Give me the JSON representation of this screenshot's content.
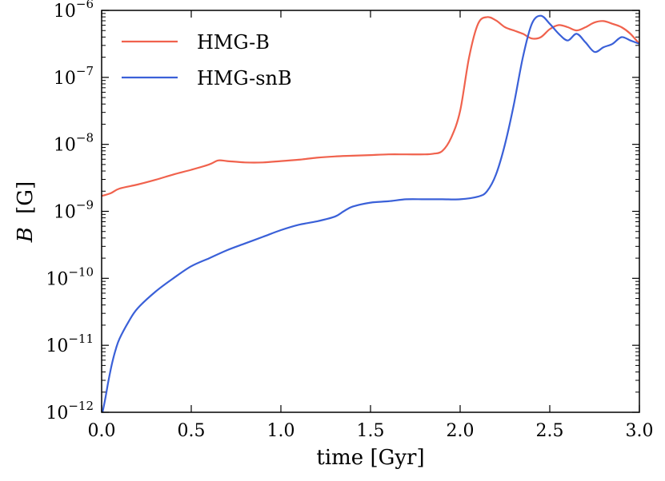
{
  "chart_data": {
    "type": "line",
    "title": "",
    "xlabel": "time [Gyr]",
    "ylabel_symbol": "B",
    "ylabel_unit": "[G]",
    "xlim": [
      0.0,
      3.0
    ],
    "ylim_log10": [
      -12,
      -6
    ],
    "yscale": "log",
    "grid": false,
    "legend_position": "top-left",
    "x_ticks": [
      {
        "value": 0.0,
        "label": "0.0"
      },
      {
        "value": 0.5,
        "label": "0.5"
      },
      {
        "value": 1.0,
        "label": "1.0"
      },
      {
        "value": 1.5,
        "label": "1.5"
      },
      {
        "value": 2.0,
        "label": "2.0"
      },
      {
        "value": 2.5,
        "label": "2.5"
      },
      {
        "value": 3.0,
        "label": "3.0"
      }
    ],
    "y_ticks": [
      {
        "exp": -12,
        "base": "10",
        "sup": "−12"
      },
      {
        "exp": -11,
        "base": "10",
        "sup": "−11"
      },
      {
        "exp": -10,
        "base": "10",
        "sup": "−10"
      },
      {
        "exp": -9,
        "base": "10",
        "sup": "−9"
      },
      {
        "exp": -8,
        "base": "10",
        "sup": "−8"
      },
      {
        "exp": -7,
        "base": "10",
        "sup": "−7"
      },
      {
        "exp": -6,
        "base": "10",
        "sup": "−6"
      }
    ],
    "series": [
      {
        "name": "HMG-B",
        "color": "#f0624d",
        "x": [
          0.0,
          0.05,
          0.1,
          0.2,
          0.3,
          0.4,
          0.5,
          0.6,
          0.65,
          0.7,
          0.8,
          0.9,
          1.0,
          1.1,
          1.2,
          1.3,
          1.4,
          1.5,
          1.6,
          1.7,
          1.8,
          1.85,
          1.9,
          1.95,
          2.0,
          2.05,
          2.1,
          2.15,
          2.2,
          2.25,
          2.3,
          2.35,
          2.4,
          2.45,
          2.5,
          2.55,
          2.6,
          2.65,
          2.7,
          2.75,
          2.8,
          2.85,
          2.9,
          2.95,
          3.0
        ],
        "log10B": [
          -8.77,
          -8.73,
          -8.66,
          -8.6,
          -8.53,
          -8.45,
          -8.38,
          -8.3,
          -8.24,
          -8.25,
          -8.27,
          -8.27,
          -8.25,
          -8.23,
          -8.2,
          -8.18,
          -8.17,
          -8.16,
          -8.15,
          -8.15,
          -8.15,
          -8.14,
          -8.1,
          -7.9,
          -7.5,
          -6.7,
          -6.2,
          -6.1,
          -6.15,
          -6.25,
          -6.3,
          -6.35,
          -6.42,
          -6.4,
          -6.28,
          -6.22,
          -6.25,
          -6.3,
          -6.25,
          -6.18,
          -6.16,
          -6.2,
          -6.25,
          -6.35,
          -6.5
        ]
      },
      {
        "name": "HMG-snB",
        "color": "#3a60d8",
        "x": [
          0.005,
          0.02,
          0.04,
          0.06,
          0.08,
          0.1,
          0.15,
          0.2,
          0.3,
          0.4,
          0.5,
          0.6,
          0.7,
          0.8,
          0.9,
          1.0,
          1.1,
          1.2,
          1.3,
          1.35,
          1.4,
          1.5,
          1.6,
          1.7,
          1.8,
          1.9,
          2.0,
          2.1,
          2.15,
          2.2,
          2.25,
          2.3,
          2.35,
          2.4,
          2.45,
          2.5,
          2.55,
          2.6,
          2.65,
          2.7,
          2.75,
          2.8,
          2.85,
          2.9,
          2.95,
          3.0
        ],
        "log10B": [
          -12.0,
          -11.8,
          -11.5,
          -11.25,
          -11.05,
          -10.9,
          -10.65,
          -10.45,
          -10.2,
          -10.0,
          -9.82,
          -9.7,
          -9.58,
          -9.48,
          -9.38,
          -9.28,
          -9.2,
          -9.15,
          -9.08,
          -9.0,
          -8.93,
          -8.87,
          -8.85,
          -8.82,
          -8.82,
          -8.82,
          -8.82,
          -8.78,
          -8.7,
          -8.45,
          -8.0,
          -7.4,
          -6.7,
          -6.2,
          -6.08,
          -6.2,
          -6.35,
          -6.45,
          -6.35,
          -6.48,
          -6.62,
          -6.55,
          -6.5,
          -6.4,
          -6.45,
          -6.5
        ]
      }
    ]
  }
}
